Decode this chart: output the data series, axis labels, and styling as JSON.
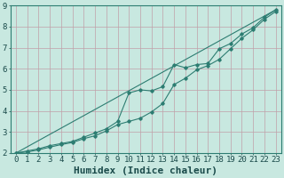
{
  "title": "",
  "xlabel": "Humidex (Indice chaleur)",
  "ylabel": "",
  "bg_color": "#c8e8e0",
  "line_color": "#2d7d72",
  "grid_color": "#b0d8d0",
  "xlim": [
    -0.5,
    23.5
  ],
  "ylim": [
    2,
    9
  ],
  "xticks": [
    0,
    1,
    2,
    3,
    4,
    5,
    6,
    7,
    8,
    9,
    10,
    11,
    12,
    13,
    14,
    15,
    16,
    17,
    18,
    19,
    20,
    21,
    22,
    23
  ],
  "yticks": [
    2,
    3,
    4,
    5,
    6,
    7,
    8,
    9
  ],
  "line1_x": [
    0,
    1,
    2,
    3,
    4,
    5,
    6,
    7,
    8,
    9,
    10,
    11,
    12,
    13,
    14,
    15,
    16,
    17,
    18,
    19,
    20,
    21,
    22,
    23
  ],
  "line1_y": [
    2.0,
    2.1,
    2.2,
    2.35,
    2.45,
    2.55,
    2.75,
    2.95,
    3.15,
    3.5,
    4.85,
    5.0,
    4.95,
    5.15,
    6.2,
    6.05,
    6.2,
    6.25,
    6.95,
    7.2,
    7.65,
    7.95,
    8.45,
    8.8
  ],
  "line2_x": [
    0,
    1,
    2,
    3,
    4,
    5,
    6,
    7,
    8,
    9,
    10,
    11,
    12,
    13,
    14,
    15,
    16,
    17,
    18,
    19,
    20,
    21,
    22,
    23
  ],
  "line2_y": [
    2.0,
    2.05,
    2.15,
    2.28,
    2.4,
    2.5,
    2.68,
    2.82,
    3.05,
    3.35,
    3.5,
    3.65,
    3.95,
    4.35,
    5.25,
    5.55,
    5.95,
    6.15,
    6.45,
    6.95,
    7.45,
    7.85,
    8.35,
    8.72
  ],
  "line3_x": [
    0,
    23
  ],
  "line3_y": [
    2.0,
    8.8
  ],
  "font_family": "monospace",
  "xlabel_fontsize": 8,
  "tick_fontsize": 6.5
}
